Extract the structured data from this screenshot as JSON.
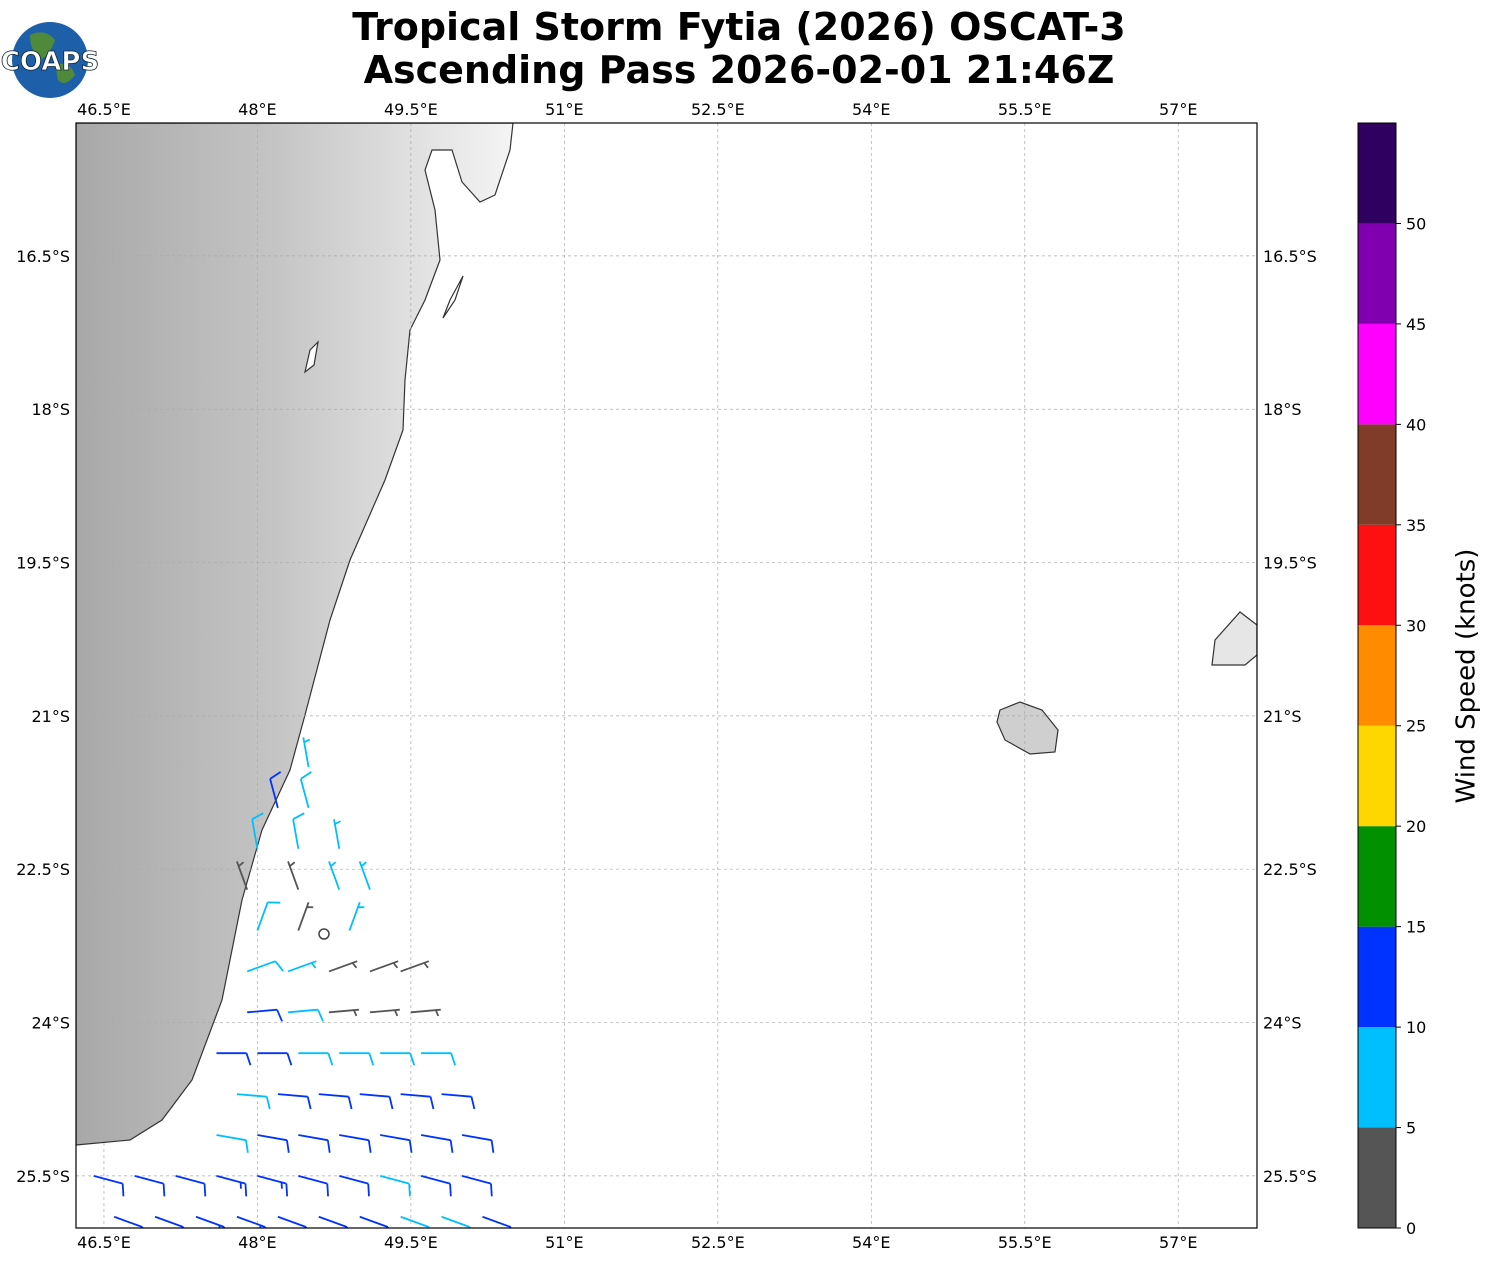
{
  "logo": "COAPS",
  "chart_data": {
    "type": "wind-barb-map",
    "title": [
      "Tropical Storm Fytia (2026) OSCAT-3",
      "Ascending Pass 2026-02-01 21:46Z"
    ],
    "xlim": [
      46.227,
      57.77
    ],
    "ylim": [
      -26.01,
      -15.2
    ],
    "xticks": [
      {
        "value": 46.5,
        "label": "46.5°E"
      },
      {
        "value": 48,
        "label": "48°E"
      },
      {
        "value": 49.5,
        "label": "49.5°E"
      },
      {
        "value": 51,
        "label": "51°E"
      },
      {
        "value": 52.5,
        "label": "52.5°E"
      },
      {
        "value": 54,
        "label": "54°E"
      },
      {
        "value": 55.5,
        "label": "55.5°E"
      },
      {
        "value": 57,
        "label": "57°E"
      }
    ],
    "yticks": [
      {
        "value": -16.5,
        "label": "16.5°S"
      },
      {
        "value": -18,
        "label": "18°S"
      },
      {
        "value": -19.5,
        "label": "19.5°S"
      },
      {
        "value": -21,
        "label": "21°S"
      },
      {
        "value": -22.5,
        "label": "22.5°S"
      },
      {
        "value": -24,
        "label": "24°S"
      },
      {
        "value": -25.5,
        "label": "25.5°S"
      }
    ],
    "grid": true,
    "colorbar": {
      "label": "Wind Speed (knots)",
      "lim": [
        0,
        55
      ],
      "ticks": [
        0,
        5,
        10,
        15,
        20,
        25,
        30,
        35,
        40,
        45,
        50
      ],
      "colors": [
        "#555555",
        "#00bfff",
        "#0033ff",
        "#009000",
        "#ffd700",
        "#ff8c00",
        "#ff1010",
        "#803c28",
        "#ff00ff",
        "#8000b0",
        "#300060"
      ]
    },
    "barbs": {
      "lon": [
        46.6,
        47.0,
        47.4,
        47.8,
        48.2,
        48.6,
        49.0,
        49.4,
        49.8,
        50.2,
        46.4,
        46.8,
        47.2,
        47.6,
        48.0,
        48.4,
        48.8,
        49.2,
        49.6,
        50.0,
        47.6,
        48.0,
        48.4,
        48.8,
        49.2,
        49.6,
        50.0,
        47.8,
        48.2,
        48.6,
        49.0,
        49.4,
        49.8,
        47.6,
        48.0,
        48.4,
        48.8,
        49.2,
        49.6,
        47.9,
        48.3,
        48.7,
        49.1,
        49.5,
        47.9,
        48.3,
        48.7,
        49.1,
        49.4,
        48.0,
        48.4,
        48.9,
        47.9,
        48.4,
        48.8,
        49.1,
        48.0,
        48.4,
        48.8,
        48.2,
        48.5,
        48.5
      ],
      "lat": [
        -25.9,
        -25.9,
        -25.9,
        -25.9,
        -25.9,
        -25.9,
        -25.9,
        -25.9,
        -25.9,
        -25.9,
        -25.5,
        -25.5,
        -25.5,
        -25.5,
        -25.5,
        -25.5,
        -25.5,
        -25.5,
        -25.5,
        -25.5,
        -25.1,
        -25.1,
        -25.1,
        -25.1,
        -25.1,
        -25.1,
        -25.1,
        -24.7,
        -24.7,
        -24.7,
        -24.7,
        -24.7,
        -24.7,
        -24.3,
        -24.3,
        -24.3,
        -24.3,
        -24.3,
        -24.3,
        -23.9,
        -23.9,
        -23.9,
        -23.9,
        -23.9,
        -23.5,
        -23.5,
        -23.5,
        -23.5,
        -23.5,
        -23.1,
        -23.1,
        -23.1,
        -22.7,
        -22.7,
        -22.7,
        -22.7,
        -22.3,
        -22.3,
        -22.3,
        -21.9,
        -21.9,
        -21.5
      ],
      "speed": [
        12,
        12,
        13,
        13,
        12,
        11,
        11,
        8,
        8,
        11,
        11,
        12,
        12,
        13,
        13,
        12,
        12,
        9,
        10,
        12,
        8,
        12,
        12,
        12,
        12,
        11,
        11,
        8,
        11,
        11,
        11,
        12,
        12,
        12,
        12,
        9,
        8,
        8,
        8,
        11,
        8,
        4,
        4,
        3,
        8,
        7,
        4,
        3,
        3,
        8,
        3,
        7,
        4,
        3,
        7,
        7,
        8,
        8,
        7,
        12,
        8,
        7
      ],
      "direction": [
        110,
        110,
        110,
        110,
        110,
        110,
        110,
        110,
        110,
        110,
        105,
        105,
        105,
        105,
        105,
        105,
        105,
        105,
        105,
        105,
        100,
        100,
        100,
        100,
        100,
        100,
        100,
        95,
        95,
        95,
        95,
        95,
        95,
        90,
        90,
        90,
        90,
        90,
        90,
        85,
        85,
        85,
        85,
        85,
        70,
        70,
        70,
        70,
        70,
        20,
        20,
        20,
        340,
        340,
        340,
        340,
        350,
        350,
        350,
        345,
        345,
        350
      ]
    }
  }
}
